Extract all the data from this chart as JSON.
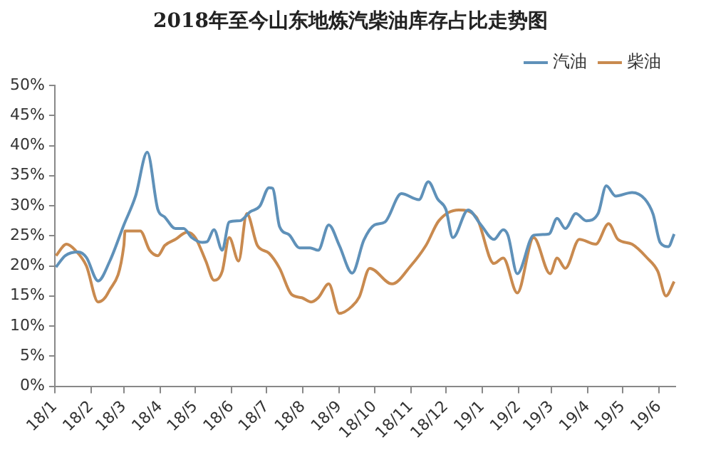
{
  "chart_data": {
    "type": "line",
    "title": "2018年至今山东地炼汽柴油库存占比走势图",
    "xlim": [
      "2018-01-01",
      "2019-06-15"
    ],
    "xticks": [
      {
        "value": "2018-01-01",
        "label": "18/1"
      },
      {
        "value": "2018-02-01",
        "label": "18/2"
      },
      {
        "value": "2018-03-01",
        "label": "18/3"
      },
      {
        "value": "2018-04-01",
        "label": "18/4"
      },
      {
        "value": "2018-05-01",
        "label": "18/5"
      },
      {
        "value": "2018-06-01",
        "label": "18/6"
      },
      {
        "value": "2018-07-01",
        "label": "18/7"
      },
      {
        "value": "2018-08-01",
        "label": "18/8"
      },
      {
        "value": "2018-09-01",
        "label": "18/9"
      },
      {
        "value": "2018-10-01",
        "label": "18/10"
      },
      {
        "value": "2018-11-01",
        "label": "18/11"
      },
      {
        "value": "2018-12-01",
        "label": "18/12"
      },
      {
        "value": "2019-01-01",
        "label": "19/1"
      },
      {
        "value": "2019-02-01",
        "label": "19/2"
      },
      {
        "value": "2019-03-01",
        "label": "19/3"
      },
      {
        "value": "2019-04-01",
        "label": "19/4"
      },
      {
        "value": "2019-05-01",
        "label": "19/5"
      },
      {
        "value": "2019-06-01",
        "label": "19/6"
      }
    ],
    "ylim": [
      0,
      50
    ],
    "yticks": [
      {
        "value": 0,
        "label": "0%"
      },
      {
        "value": 5,
        "label": "5%"
      },
      {
        "value": 10,
        "label": "10%"
      },
      {
        "value": 15,
        "label": "15%"
      },
      {
        "value": 20,
        "label": "20%"
      },
      {
        "value": 25,
        "label": "25%"
      },
      {
        "value": 30,
        "label": "30%"
      },
      {
        "value": 35,
        "label": "35%"
      },
      {
        "value": 40,
        "label": "40%"
      },
      {
        "value": 45,
        "label": "45%"
      },
      {
        "value": 50,
        "label": "50%"
      }
    ],
    "grid": false,
    "legend": "top right",
    "marker": "none",
    "line_style": "solid",
    "series": [
      {
        "name": "汽油",
        "color": "#5f91b9",
        "x": [
          "2018-01-02",
          "2018-01-10",
          "2018-01-21",
          "2018-01-28",
          "2018-02-07",
          "2018-02-17",
          "2018-03-01",
          "2018-03-11",
          "2018-03-21",
          "2018-03-30",
          "2018-04-05",
          "2018-04-14",
          "2018-04-21",
          "2018-04-28",
          "2018-05-07",
          "2018-05-11",
          "2018-05-17",
          "2018-05-24",
          "2018-05-30",
          "2018-06-08",
          "2018-06-17",
          "2018-06-25",
          "2018-07-03",
          "2018-07-06",
          "2018-07-12",
          "2018-07-20",
          "2018-07-29",
          "2018-08-07",
          "2018-08-14",
          "2018-08-23",
          "2018-09-01",
          "2018-09-12",
          "2018-09-22",
          "2018-10-01",
          "2018-10-10",
          "2018-10-24",
          "2018-11-08",
          "2018-11-16",
          "2018-11-24",
          "2018-12-01",
          "2018-12-07",
          "2018-12-20",
          "2018-12-31",
          "2019-01-11",
          "2019-01-19",
          "2019-01-23",
          "2019-01-31",
          "2019-02-14",
          "2019-02-27",
          "2019-03-06",
          "2019-03-13",
          "2019-03-22",
          "2019-03-31",
          "2019-04-10",
          "2019-04-17",
          "2019-04-25",
          "2019-05-09",
          "2019-05-20",
          "2019-05-27",
          "2019-06-02",
          "2019-06-09",
          "2019-06-14"
        ],
        "values": [
          19.8,
          21.7,
          22.3,
          21.4,
          17.5,
          20.8,
          26.8,
          31.6,
          38.9,
          29.4,
          28.1,
          26.2,
          26.2,
          24.7,
          23.9,
          24.0,
          26.0,
          22.6,
          27.3,
          27.5,
          29.0,
          29.9,
          33.0,
          32.9,
          26.5,
          25.2,
          23.0,
          23.0,
          22.6,
          26.8,
          23.4,
          18.8,
          24.3,
          26.8,
          27.3,
          32.0,
          31.0,
          34.0,
          31.1,
          29.4,
          24.7,
          29.3,
          26.8,
          24.4,
          26.0,
          25.1,
          18.7,
          25.1,
          25.3,
          27.9,
          26.2,
          28.7,
          27.5,
          28.7,
          33.3,
          31.6,
          32.2,
          31.1,
          28.6,
          23.9,
          23.2,
          25.3
        ]
      },
      {
        "name": "柴油",
        "color": "#c98a4f",
        "x": [
          "2018-01-02",
          "2018-01-11",
          "2018-01-18",
          "2018-01-28",
          "2018-02-07",
          "2018-02-16",
          "2018-03-01",
          "2018-03-02",
          "2018-03-15",
          "2018-03-23",
          "2018-03-30",
          "2018-04-05",
          "2018-04-14",
          "2018-04-24",
          "2018-05-01",
          "2018-05-10",
          "2018-05-17",
          "2018-05-24",
          "2018-05-30",
          "2018-06-07",
          "2018-06-14",
          "2018-06-23",
          "2018-07-03",
          "2018-07-12",
          "2018-07-22",
          "2018-07-31",
          "2018-08-08",
          "2018-08-14",
          "2018-08-23",
          "2018-09-01",
          "2018-09-12",
          "2018-09-18",
          "2018-09-27",
          "2018-10-16",
          "2018-11-01",
          "2018-11-14",
          "2018-11-25",
          "2018-12-12",
          "2018-12-27",
          "2019-01-11",
          "2019-01-19",
          "2019-01-31",
          "2019-02-14",
          "2019-02-28",
          "2019-03-06",
          "2019-03-13",
          "2019-03-25",
          "2019-04-08",
          "2019-04-19",
          "2019-04-27",
          "2019-05-09",
          "2019-05-22",
          "2019-05-31",
          "2019-06-07",
          "2019-06-14"
        ],
        "values": [
          21.7,
          23.6,
          22.7,
          20.0,
          14.0,
          15.7,
          23.4,
          25.8,
          25.8,
          22.6,
          21.7,
          23.4,
          24.4,
          25.6,
          24.7,
          20.8,
          17.6,
          19.1,
          24.7,
          20.8,
          28.7,
          23.4,
          22.1,
          19.6,
          15.3,
          14.7,
          14.0,
          14.7,
          17.0,
          12.1,
          13.3,
          14.8,
          19.6,
          17.0,
          20.0,
          23.4,
          27.5,
          29.3,
          28.1,
          20.4,
          21.3,
          15.5,
          24.7,
          18.7,
          21.3,
          19.6,
          24.4,
          23.6,
          27.0,
          24.4,
          23.6,
          21.3,
          19.1,
          15.0,
          17.4
        ]
      }
    ]
  }
}
